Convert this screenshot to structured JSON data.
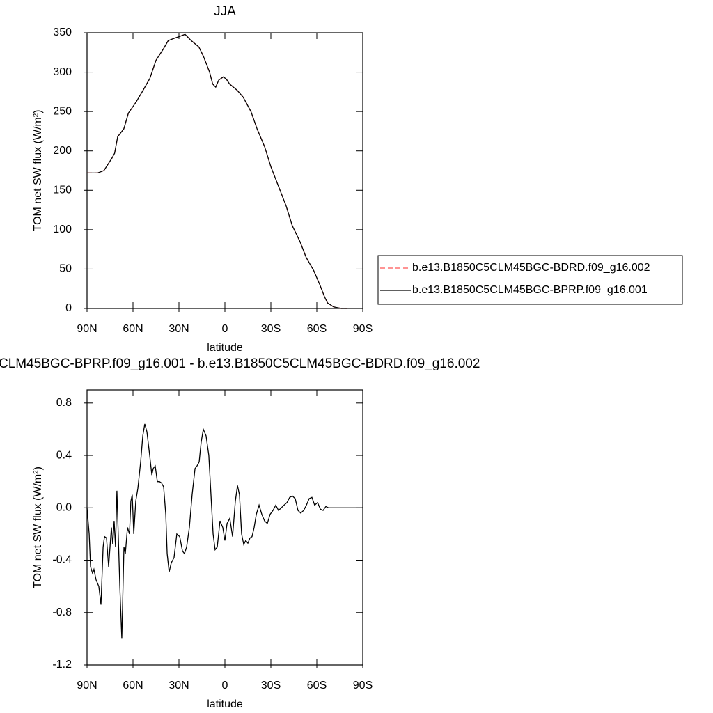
{
  "chart_data": [
    {
      "type": "line",
      "title": "JJA",
      "xlabel": "latitude",
      "ylabel": "TOM net SW flux (W/m²)",
      "x": [
        90,
        83,
        79,
        74,
        72,
        70,
        66,
        63,
        58,
        54,
        49,
        45,
        40,
        37,
        33,
        30,
        26,
        22,
        17,
        14,
        10,
        8,
        6,
        4,
        1,
        -1,
        -3,
        -8,
        -12,
        -17,
        -21,
        -26,
        -30,
        -35,
        -40,
        -44,
        -49,
        -53,
        -58,
        -62,
        -65,
        -67,
        -71,
        -76,
        -80
      ],
      "series": [
        {
          "name": "b.e13.B1850C5CLM45BGC-BDRD.f09_g16.002",
          "color": "#ff5555",
          "line_style": "dashed",
          "values": [
            172,
            172,
            175,
            190,
            197,
            218,
            228,
            248,
            262,
            275,
            292,
            315,
            330,
            340,
            343,
            345,
            348,
            340,
            332,
            320,
            300,
            285,
            281,
            290,
            294,
            291,
            285,
            277,
            268,
            250,
            228,
            205,
            180,
            155,
            130,
            105,
            85,
            65,
            48,
            30,
            15,
            7,
            2,
            0,
            0
          ]
        },
        {
          "name": "b.e13.B1850C5CLM45BGC-BPRP.f09_g16.001",
          "color": "#000000",
          "line_style": "solid",
          "values": [
            172,
            172,
            175,
            190,
            197,
            218,
            228,
            248,
            262,
            275,
            292,
            315,
            330,
            340,
            343,
            345,
            348,
            340,
            332,
            320,
            300,
            285,
            281,
            290,
            294,
            291,
            285,
            277,
            268,
            250,
            228,
            205,
            180,
            155,
            130,
            105,
            85,
            65,
            48,
            30,
            15,
            7,
            2,
            0,
            0
          ]
        }
      ],
      "xlim": [
        90,
        -90
      ],
      "xticks": [
        {
          "value": 90,
          "label": "90N"
        },
        {
          "value": 60,
          "label": "60N"
        },
        {
          "value": 30,
          "label": "30N"
        },
        0,
        {
          "value": -30,
          "label": "30S"
        },
        {
          "value": -60,
          "label": "60S"
        },
        {
          "value": -90,
          "label": "90S"
        }
      ],
      "ylim": [
        0,
        350
      ],
      "yticks": [
        0,
        50,
        100,
        150,
        200,
        250,
        300,
        350
      ],
      "legend": "right"
    },
    {
      "type": "line",
      "title": "CLM45BGC-BPRP.f09_g16.001 - b.e13.B1850C5CLM45BGC-BDRD.f09_g16.002",
      "xlabel": "latitude",
      "ylabel": "TOM net SW flux (W/m²)",
      "x": [
        90,
        88.6,
        87.7,
        86.4,
        85.5,
        84.1,
        82.3,
        80.9,
        79.5,
        78.6,
        77.3,
        75.9,
        74.1,
        73.2,
        72.3,
        71.4,
        70.5,
        69.5,
        68.6,
        67.3,
        65.9,
        65,
        63.6,
        62.3,
        61.4,
        60.5,
        59.5,
        58.2,
        56.8,
        55,
        53.6,
        52.3,
        50.9,
        49.1,
        47.7,
        46.8,
        45.5,
        44.1,
        42.7,
        41.4,
        40,
        38.6,
        37.7,
        36.4,
        35,
        33.2,
        31.4,
        29.5,
        27.7,
        26.4,
        25,
        23.2,
        21.4,
        19.5,
        18.2,
        16.8,
        15.5,
        14.1,
        12.3,
        10.5,
        9.1,
        7.7,
        6.4,
        5,
        3.2,
        1.4,
        0,
        -1.4,
        -3.2,
        -5,
        -6.8,
        -8.2,
        -9.5,
        -10.9,
        -12.3,
        -13.6,
        -15,
        -16.4,
        -17.7,
        -19.1,
        -20.5,
        -22.3,
        -24.1,
        -25.9,
        -27.7,
        -29.5,
        -31.4,
        -33.2,
        -35,
        -36.8,
        -38.6,
        -40.5,
        -42.3,
        -44.1,
        -45.9,
        -47.7,
        -49.5,
        -51.4,
        -53.2,
        -55,
        -56.8,
        -58.6,
        -60.5,
        -62.3,
        -64.1,
        -65.9,
        -67.7,
        -71.4,
        -75.9,
        -80.5,
        -90
      ],
      "series": [
        {
          "color": "#000000",
          "line_style": "solid",
          "values": [
            0,
            -0.2,
            -0.45,
            -0.5,
            -0.47,
            -0.55,
            -0.6,
            -0.74,
            -0.3,
            -0.22,
            -0.23,
            -0.45,
            -0.15,
            -0.28,
            -0.1,
            -0.3,
            0.13,
            -0.25,
            -0.6,
            -1.0,
            -0.3,
            -0.35,
            -0.15,
            -0.2,
            0.05,
            0.1,
            -0.2,
            0.05,
            0.15,
            0.35,
            0.55,
            0.64,
            0.58,
            0.4,
            0.25,
            0.3,
            0.32,
            0.2,
            0.2,
            0.19,
            0.16,
            -0.05,
            -0.35,
            -0.49,
            -0.42,
            -0.38,
            -0.2,
            -0.22,
            -0.33,
            -0.35,
            -0.3,
            -0.15,
            0.1,
            0.3,
            0.32,
            0.35,
            0.5,
            0.6,
            0.55,
            0.4,
            0.1,
            -0.2,
            -0.32,
            -0.3,
            -0.1,
            -0.15,
            -0.25,
            -0.12,
            -0.08,
            -0.22,
            0.05,
            0.17,
            0.1,
            -0.2,
            -0.28,
            -0.25,
            -0.27,
            -0.23,
            -0.22,
            -0.15,
            -0.05,
            0.02,
            -0.05,
            -0.1,
            -0.12,
            -0.05,
            -0.02,
            0.02,
            -0.02,
            0,
            0.02,
            0.04,
            0.08,
            0.09,
            0.07,
            -0.02,
            -0.04,
            -0.02,
            0.02,
            0.07,
            0.08,
            0.02,
            0.04,
            -0.01,
            -0.02,
            0.01,
            0,
            0,
            0,
            0,
            0
          ]
        }
      ],
      "xlim": [
        90,
        -90
      ],
      "xticks": [
        {
          "value": 90,
          "label": "90N"
        },
        {
          "value": 60,
          "label": "60N"
        },
        {
          "value": 30,
          "label": "30N"
        },
        0,
        {
          "value": -30,
          "label": "30S"
        },
        {
          "value": -60,
          "label": "60S"
        },
        {
          "value": -90,
          "label": "90S"
        }
      ],
      "ylim": [
        -1.2,
        0.9
      ],
      "yticks": [
        -1.2,
        -0.8,
        -0.4,
        {
          "value": 0,
          "label": "0.0"
        },
        0.4,
        0.8
      ]
    }
  ]
}
